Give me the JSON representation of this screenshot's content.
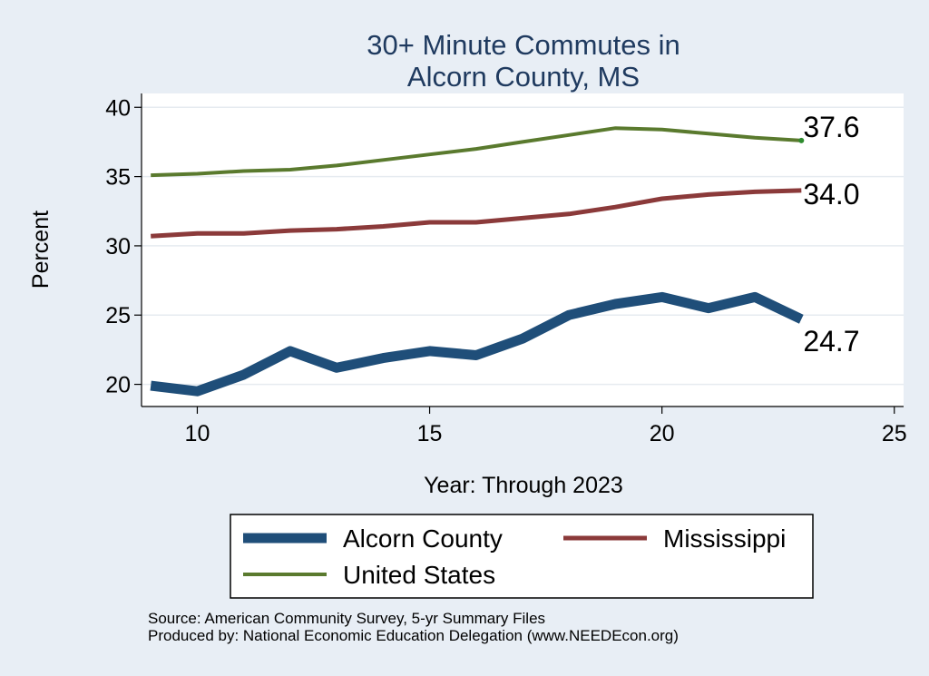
{
  "chart_data": {
    "type": "line",
    "title_lines": [
      "30+ Minute Commutes in",
      "Alcorn County, MS"
    ],
    "xlabel": "Year: Through 2023",
    "ylabel": "Percent",
    "xlim": [
      8.8,
      25.2
    ],
    "ylim": [
      18.4,
      41.0
    ],
    "xticks": [
      10,
      15,
      20,
      25
    ],
    "yticks": [
      20,
      25,
      30,
      35,
      40
    ],
    "grid": true,
    "legend_position": "bottom",
    "series": [
      {
        "name": "Alcorn County",
        "color": "#1f4e79",
        "x": [
          9,
          10,
          11,
          12,
          13,
          14,
          15,
          16,
          17,
          18,
          19,
          20,
          21,
          22,
          23
        ],
        "values": [
          19.9,
          19.5,
          20.7,
          22.4,
          21.2,
          21.9,
          22.4,
          22.1,
          23.3,
          25.0,
          25.8,
          26.3,
          25.5,
          26.3,
          24.7
        ],
        "end_label": "24.7"
      },
      {
        "name": "Mississippi",
        "color": "#8b3a3a",
        "x": [
          9,
          10,
          11,
          12,
          13,
          14,
          15,
          16,
          17,
          18,
          19,
          20,
          21,
          22,
          23
        ],
        "values": [
          30.7,
          30.9,
          30.9,
          31.1,
          31.2,
          31.4,
          31.7,
          31.7,
          32.0,
          32.3,
          32.8,
          33.4,
          33.7,
          33.9,
          34.0
        ],
        "end_label": "34.0"
      },
      {
        "name": "United States",
        "color": "#5a7a2e",
        "x": [
          9,
          10,
          11,
          12,
          13,
          14,
          15,
          16,
          17,
          18,
          19,
          20,
          21,
          22,
          23
        ],
        "values": [
          35.1,
          35.2,
          35.4,
          35.5,
          35.8,
          36.2,
          36.6,
          37.0,
          37.5,
          38.0,
          38.5,
          38.4,
          38.1,
          37.8,
          37.6
        ],
        "end_label": "37.6"
      }
    ]
  },
  "source_lines": [
    "Source: American Community Survey, 5-yr Summary Files",
    "Produced by: National Economic Education Delegation (www.NEEDEcon.org)"
  ]
}
